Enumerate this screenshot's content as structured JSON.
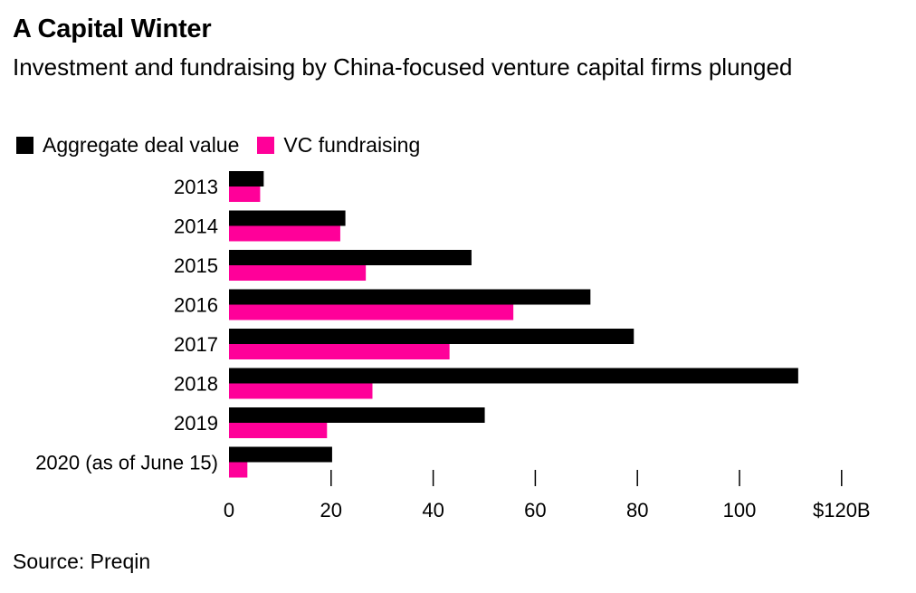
{
  "header": {
    "title": "A Capital Winter",
    "subtitle": "Investment and fundraising by China-focused venture capital firms plunged"
  },
  "legend": {
    "items": [
      {
        "label": "Aggregate deal value",
        "color": "#000000"
      },
      {
        "label": "VC fundraising",
        "color": "#ff0099"
      }
    ]
  },
  "footer": {
    "source": "Source: Preqin"
  },
  "chart_data": {
    "type": "bar",
    "orientation": "horizontal",
    "categories": [
      "2013",
      "2014",
      "2015",
      "2016",
      "2017",
      "2018",
      "2019",
      "2020 (as of June 15)"
    ],
    "series": [
      {
        "name": "Aggregate deal value",
        "color": "#000000",
        "values": [
          6.8,
          22.8,
          47.5,
          70.8,
          79.3,
          111.5,
          50.1,
          20.2
        ]
      },
      {
        "name": "VC fundraising",
        "color": "#ff0099",
        "values": [
          6.1,
          21.8,
          26.8,
          55.7,
          43.2,
          28.1,
          19.2,
          3.6
        ]
      }
    ],
    "x_ticks": [
      "0",
      "20",
      "40",
      "60",
      "80",
      "100",
      "$120B"
    ],
    "xlim": [
      0,
      120
    ],
    "grid": false,
    "legend_position": "top-left"
  }
}
